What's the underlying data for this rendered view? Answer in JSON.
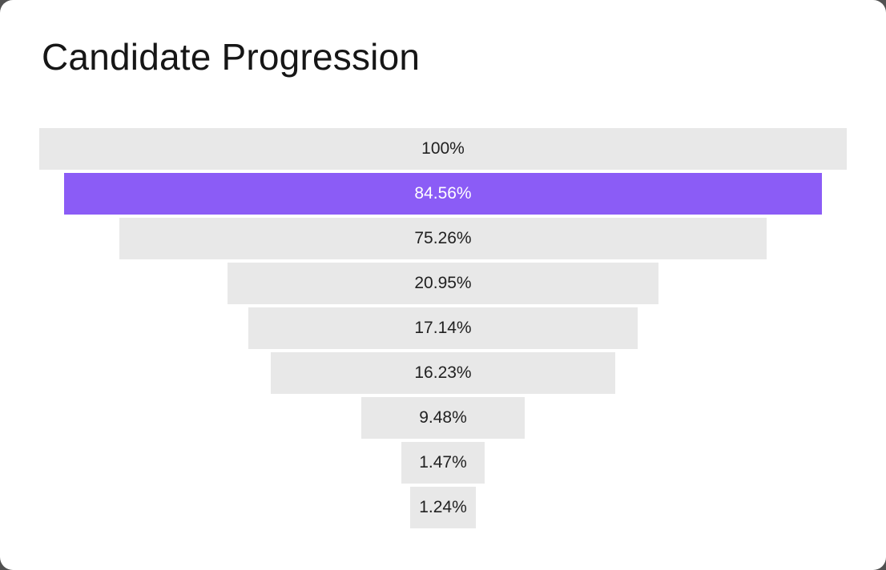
{
  "page": {
    "background_color": "#515151",
    "card_color": "#ffffff"
  },
  "header": {
    "title": "Candidate Progression"
  },
  "chart_data": {
    "type": "funnel",
    "title": "Candidate Progression",
    "orientation": "centered-horizontal-bars",
    "value_format": "percent",
    "legend": "none",
    "axes": "none",
    "stages": [
      {
        "label": "100%",
        "value": 100,
        "width_pct": 100,
        "highlighted": false
      },
      {
        "label": "84.56%",
        "value": 84.56,
        "width_pct": 93.9,
        "highlighted": true
      },
      {
        "label": "75.26%",
        "value": 75.26,
        "width_pct": 80.2,
        "highlighted": false
      },
      {
        "label": "20.95%",
        "value": 20.95,
        "width_pct": 53.3,
        "highlighted": false
      },
      {
        "label": "17.14%",
        "value": 17.14,
        "width_pct": 48.3,
        "highlighted": false
      },
      {
        "label": "16.23%",
        "value": 16.23,
        "width_pct": 42.6,
        "highlighted": false
      },
      {
        "label": "9.48%",
        "value": 9.48,
        "width_pct": 20.2,
        "highlighted": false
      },
      {
        "label": "1.47%",
        "value": 1.47,
        "width_pct": 10.4,
        "highlighted": false
      },
      {
        "label": "1.24%",
        "value": 1.24,
        "width_pct": 8.2,
        "highlighted": false
      }
    ],
    "colors": {
      "bar": "#e8e8e8",
      "highlight": "#8b5cf6",
      "label": "#212121",
      "highlight_label": "#ffffff"
    }
  }
}
